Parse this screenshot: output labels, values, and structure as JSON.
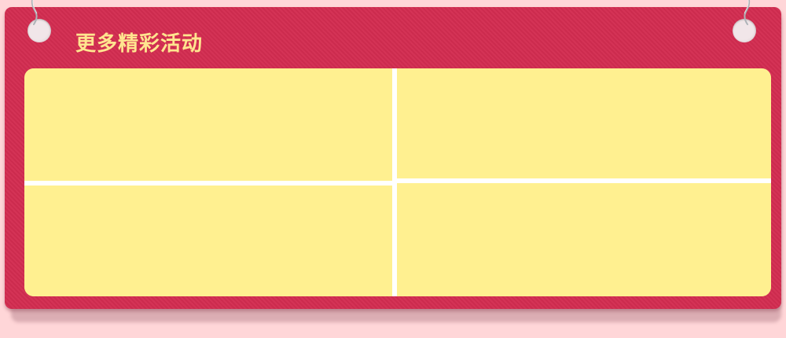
{
  "section": {
    "title": "更多精彩活动",
    "colors": {
      "background": "#ffd6d8",
      "board": "#d32c50",
      "title": "#ffe58f",
      "panel": "#fff090",
      "divider": "#ffffff"
    }
  },
  "activities": [
    {
      "slot": 1
    },
    {
      "slot": 2
    },
    {
      "slot": 3
    },
    {
      "slot": 4
    }
  ]
}
